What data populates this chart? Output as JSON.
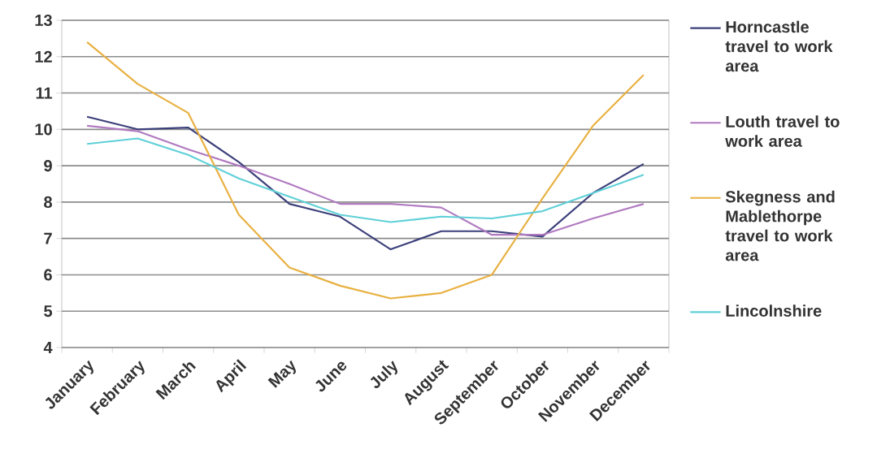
{
  "chart_data": {
    "type": "line",
    "categories": [
      "January",
      "February",
      "March",
      "April",
      "May",
      "June",
      "July",
      "August",
      "September",
      "October",
      "November",
      "December"
    ],
    "series": [
      {
        "name": "Horncastle travel to work area",
        "color": "#3b3f7a",
        "values": [
          10.35,
          10.0,
          10.05,
          9.1,
          7.95,
          7.6,
          6.7,
          7.2,
          7.2,
          7.05,
          8.25,
          9.05
        ]
      },
      {
        "name": "Louth travel to work area",
        "color": "#b07ac0",
        "values": [
          10.1,
          9.95,
          9.45,
          9.0,
          8.5,
          7.95,
          7.95,
          7.85,
          7.1,
          7.1,
          7.55,
          7.95
        ]
      },
      {
        "name": "Skegness and Mablethorpe travel to work area",
        "color": "#e8b040",
        "values": [
          12.4,
          11.25,
          10.45,
          7.65,
          6.2,
          5.7,
          5.35,
          5.5,
          6.0,
          8.1,
          10.1,
          11.5
        ]
      },
      {
        "name": "Lincolnshire",
        "color": "#5fd0d8",
        "values": [
          9.6,
          9.75,
          9.3,
          8.65,
          8.15,
          7.65,
          7.45,
          7.6,
          7.55,
          7.75,
          8.25,
          8.75
        ]
      }
    ],
    "ylim": [
      4,
      13
    ],
    "yticks": [
      4,
      5,
      6,
      7,
      8,
      9,
      10,
      11,
      12,
      13
    ],
    "grid": "y",
    "legend": "right",
    "line_style": "solid"
  }
}
